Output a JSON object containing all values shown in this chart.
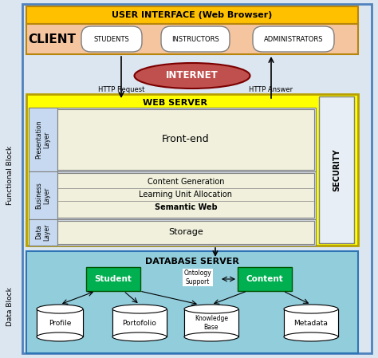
{
  "bg_color": "#dce6f1",
  "outer_border_color": "#4f81bd",
  "title_bar_color": "#ffc000",
  "title_bar_text": "USER INTERFACE (Web Browser)",
  "client_box_color": "#f5c5a0",
  "client_text": "CLIENT",
  "user_buttons": [
    "STUDENTS",
    "INSTRUCTORS",
    "ADMINISTRATORS"
  ],
  "internet_color": "#c0504d",
  "internet_text": "INTERNET",
  "http_request": "HTTP Request",
  "http_answer": "HTTP Answer",
  "web_server_color": "#ffff00",
  "web_server_text": "WEB SERVER",
  "security_text": "SECURITY",
  "security_color": "#e8eef5",
  "pres_layer_text": "Presentation\nLayer",
  "pres_layer_color": "#c6d9f0",
  "frontend_text": "Front-end",
  "frontend_color": "#f0f0dc",
  "biz_layer_text": "Business\nLayer",
  "biz_layer_color": "#c6d9f0",
  "business_items": [
    "Content Generation",
    "Learning Unit Allocation",
    "Semantic Web"
  ],
  "biz_color": "#f0f0dc",
  "data_layer_text": "Data\nLayer",
  "data_layer_color": "#c6d9f0",
  "storage_text": "Storage",
  "storage_color": "#f0f0dc",
  "db_server_color": "#92cddc",
  "db_server_text": "DATABASE SERVER",
  "student_box_color": "#00b050",
  "content_box_color": "#00b050",
  "ontology_text": "Ontology\nSupport",
  "db_cylinders": [
    "Profile",
    "Portofolio",
    "Knowledge\nBase",
    "Metadata"
  ],
  "cylinder_color": "#ffffff",
  "functional_block_text": "Functional Block",
  "data_block_text": "Data Block"
}
